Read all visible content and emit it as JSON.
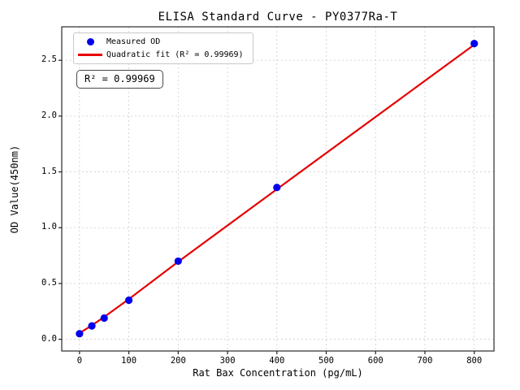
{
  "figure": {
    "background": "#ffffff"
  },
  "chart_data": {
    "type": "scatter",
    "title": "ELISA Standard Curve - PY0377Ra-T",
    "xlabel": "Rat Bax Concentration (pg/mL)",
    "ylabel": "OD Value(450nm)",
    "xlim": [
      -36,
      840
    ],
    "ylim": [
      -0.105,
      2.8
    ],
    "xticks": [
      0,
      100,
      200,
      300,
      400,
      500,
      600,
      700,
      800
    ],
    "yticks": [
      0.0,
      0.5,
      1.0,
      1.5,
      2.0,
      2.5
    ],
    "grid": true,
    "legend_position": "upper-left",
    "annotation": "R² = 0.99969",
    "series": [
      {
        "name": "Measured OD",
        "type": "scatter",
        "color": "#0000ee",
        "x": [
          0,
          25,
          50,
          100,
          200,
          400,
          800
        ],
        "y": [
          0.05,
          0.12,
          0.19,
          0.35,
          0.7,
          1.36,
          2.65
        ]
      },
      {
        "name": "Quadratic fit (R² = 0.99969)",
        "type": "line",
        "color": "#e60000",
        "x": [
          0,
          25,
          50,
          100,
          200,
          400,
          800
        ],
        "y": [
          0.055,
          0.125,
          0.2,
          0.36,
          0.695,
          1.345,
          2.64
        ]
      }
    ]
  },
  "legend": {
    "items": [
      {
        "label": "Measured OD",
        "marker": "dot",
        "color": "#0000ee"
      },
      {
        "label": "Quadratic fit (R² = 0.99969)",
        "marker": "line",
        "color": "#e60000"
      }
    ]
  },
  "colors": {
    "grid": "#cdcdcd",
    "frame": "#3a3a3a",
    "tick": "#222222"
  }
}
